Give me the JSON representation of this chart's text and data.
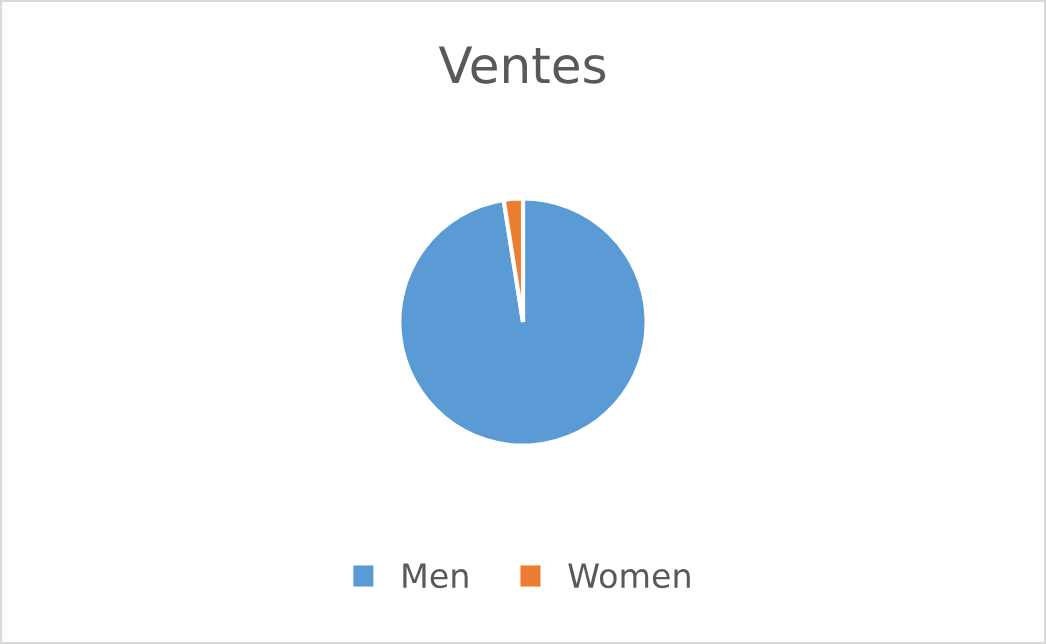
{
  "chart_data": {
    "type": "pie",
    "title": "Ventes",
    "categories": [
      "Men",
      "Women"
    ],
    "values": [
      97.5,
      2.5
    ],
    "colors": [
      "#5b9bd5",
      "#ed7d31"
    ],
    "legend": "bottom"
  }
}
